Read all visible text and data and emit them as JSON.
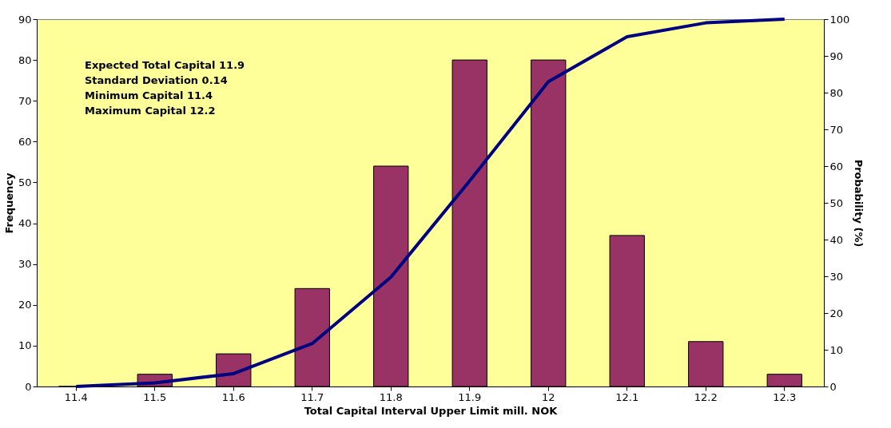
{
  "chart_data": {
    "type": "bar",
    "xlabel": "Total Capital Interval Upper Limit mill. NOK",
    "ylabel": "Frequency",
    "y2label": "Probability (%)",
    "categories": [
      "11.4",
      "11.5",
      "11.6",
      "11.7",
      "11.8",
      "11.9",
      "12",
      "12.1",
      "12.2",
      "12.3"
    ],
    "series": [
      {
        "color": "#993366",
        "values": [
          0,
          3,
          8,
          24,
          54,
          80,
          80,
          37,
          11,
          3
        ]
      },
      {
        "type": "line",
        "axis": "y2",
        "color": "#000080",
        "values": [
          0,
          1,
          3.5,
          11.7,
          29.8,
          56,
          83,
          95.2,
          99,
          100
        ]
      }
    ],
    "ylim": [
      0,
      90
    ],
    "yticks": [
      0,
      10,
      20,
      30,
      40,
      50,
      60,
      70,
      80,
      90
    ],
    "y2lim": [
      0,
      100
    ],
    "y2ticks": [
      0,
      10,
      20,
      30,
      40,
      50,
      60,
      70,
      80,
      90,
      100
    ],
    "grid": false,
    "annotations": [
      "Expected Total Capital 11.9",
      "Standard Deviation 0.14",
      "Minimum Capital 11.4",
      "Maximum Capital 12.2"
    ]
  }
}
